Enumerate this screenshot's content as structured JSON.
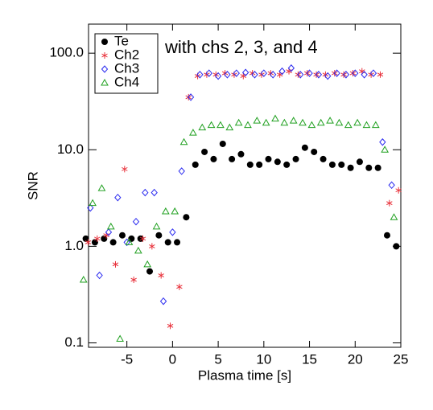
{
  "chart_data": {
    "type": "scatter",
    "annotation": "with chs 2, 3, and 4",
    "xlabel": "Plasma time [s]",
    "ylabel": "SNR",
    "xlim": [
      -9.2,
      25
    ],
    "ylim": [
      0.09,
      200
    ],
    "log_y": true,
    "xticks": [
      -5,
      0,
      5,
      10,
      15,
      20,
      25
    ],
    "yticks": [
      {
        "value": 0.1,
        "label": "0.1"
      },
      {
        "value": 1,
        "label": "1.0"
      },
      {
        "value": 10,
        "label": "10.0"
      },
      {
        "value": 100,
        "label": "100.0"
      }
    ],
    "legend": "top-left",
    "series": [
      {
        "name": "Te",
        "color": "#000000",
        "marker": "circle",
        "x": [
          -9.5,
          -8.5,
          -7.5,
          -6.5,
          -5.5,
          -4.5,
          -3.5,
          -2.5,
          -1.5,
          -0.5,
          0.5,
          1.5,
          2.5,
          3.5,
          4.5,
          5.5,
          6.5,
          7.5,
          8.5,
          9.5,
          10.5,
          11.5,
          12.5,
          13.5,
          14.5,
          15.5,
          16.5,
          17.5,
          18.5,
          19.5,
          20.5,
          21.5,
          22.5,
          23.5,
          24.5
        ],
        "values": [
          1.2,
          1.1,
          1.2,
          1.1,
          1.3,
          1.2,
          1.2,
          0.55,
          1.3,
          1.1,
          1.1,
          2.0,
          7,
          9.5,
          8,
          11.5,
          8,
          9,
          7,
          7,
          8,
          7.5,
          7,
          8,
          10.5,
          9.5,
          8,
          7,
          7,
          6.5,
          7.5,
          6.5,
          6.5,
          1.3,
          1.0
        ]
      },
      {
        "name": "Ch2",
        "color": "#e8303a",
        "marker": "asterisk",
        "x": [
          -9.25,
          -8.25,
          -7.25,
          -6.25,
          -5.25,
          -4.25,
          -3.25,
          -2.25,
          -1.25,
          -0.25,
          0.75,
          1.75,
          2.75,
          3.75,
          4.75,
          5.75,
          6.75,
          7.75,
          8.75,
          9.75,
          10.75,
          11.75,
          12.75,
          13.75,
          14.75,
          15.75,
          16.75,
          17.75,
          18.75,
          19.75,
          20.75,
          21.75,
          22.75,
          23.75,
          24.75
        ],
        "values": [
          1.1,
          1.2,
          1.3,
          0.65,
          6.3,
          0.45,
          1.2,
          1.0,
          0.5,
          0.15,
          0.38,
          35,
          58,
          60,
          60,
          62,
          60,
          58,
          62,
          60,
          62,
          60,
          65,
          60,
          62,
          60,
          60,
          62,
          60,
          62,
          65,
          60,
          60,
          2.8,
          3.8
        ]
      },
      {
        "name": "Ch3",
        "color": "#2a2af0",
        "marker": "diamond",
        "x": [
          -9,
          -8,
          -7,
          -6,
          -5,
          -4,
          -3,
          -2,
          -1,
          0,
          1,
          2,
          3,
          4,
          5,
          6,
          7,
          8,
          9,
          10,
          11,
          12,
          13,
          14,
          15,
          16,
          17,
          18,
          19,
          20,
          21,
          22,
          23,
          24
        ],
        "values": [
          2.5,
          0.5,
          1.4,
          3.2,
          1.1,
          1.8,
          3.6,
          3.6,
          0.27,
          1.4,
          6.0,
          35,
          60,
          62,
          58,
          60,
          62,
          63,
          60,
          62,
          60,
          65,
          70,
          60,
          62,
          60,
          58,
          62,
          60,
          62,
          60,
          62,
          12,
          4.3
        ]
      },
      {
        "name": "Ch4",
        "color": "#20a020",
        "marker": "triangle",
        "x": [
          -9.75,
          -8.75,
          -7.75,
          -6.75,
          -5.75,
          -4.75,
          -3.75,
          -2.75,
          -1.75,
          -0.75,
          0.25,
          1.25,
          2.25,
          3.25,
          4.25,
          5.25,
          6.25,
          7.25,
          8.25,
          9.25,
          10.25,
          11.25,
          12.25,
          13.25,
          14.25,
          15.25,
          16.25,
          17.25,
          18.25,
          19.25,
          20.25,
          21.25,
          22.25,
          23.25,
          24.25
        ],
        "values": [
          0.45,
          2.8,
          4.0,
          1.6,
          0.11,
          1.1,
          0.9,
          0.65,
          1.6,
          2.3,
          2.3,
          12,
          15,
          17,
          18,
          18,
          17,
          19,
          18,
          20,
          19,
          21,
          19,
          20,
          19,
          18,
          19,
          20,
          19,
          18,
          19,
          18,
          18,
          10,
          2.0
        ]
      }
    ]
  }
}
